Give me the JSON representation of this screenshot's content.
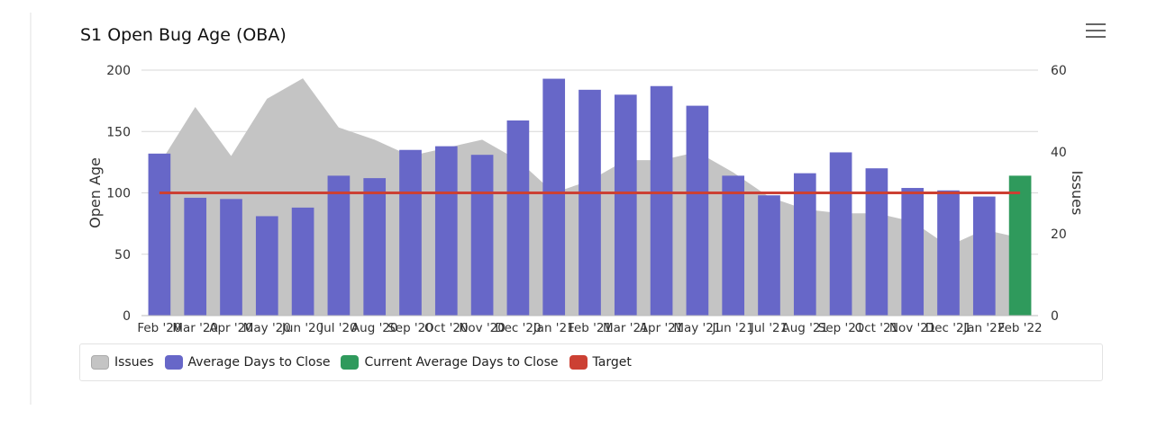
{
  "title": "S1 Open Bug Age (OBA)",
  "menu_icon": "hamburger-icon",
  "colors": {
    "issues": "#c4c4c4",
    "avg_days": "#6767c8",
    "current_avg": "#2f9a5c",
    "target": "#cc4033",
    "grid": "#d7d7d7",
    "axis_text": "#333333"
  },
  "legend": [
    {
      "label": "Issues",
      "color": "#c4c4c4"
    },
    {
      "label": "Average Days to Close",
      "color": "#6767c8"
    },
    {
      "label": "Current Average Days to Close",
      "color": "#2f9a5c"
    },
    {
      "label": "Target",
      "color": "#cc4033"
    }
  ],
  "chart_data": {
    "type": "bar",
    "title": "S1 Open Bug Age (OBA)",
    "categories": [
      "Feb '20",
      "Mar '20",
      "Apr '20",
      "May '20",
      "Jun '20",
      "Jul '20",
      "Aug '20",
      "Sep '20",
      "Oct '20",
      "Nov '20",
      "Dec '20",
      "Jan '21",
      "Feb '21",
      "Mar '21",
      "Apr '21",
      "May '21",
      "Jun '21",
      "Jul '21",
      "Aug '21",
      "Sep '21",
      "Oct '21",
      "Nov '21",
      "Dec '21",
      "Jan '22",
      "Feb '22"
    ],
    "ylabel_left": "Open Age",
    "ylabel_right": "Issues",
    "ylim_left": [
      0,
      200
    ],
    "yticks_left": [
      0,
      50,
      100,
      150,
      200
    ],
    "ylim_right": [
      0,
      60
    ],
    "yticks_right": [
      0,
      20,
      40,
      60
    ],
    "series": [
      {
        "name": "Issues",
        "type": "area",
        "axis": "right",
        "values": [
          37,
          51,
          39,
          53,
          58,
          46,
          43,
          39,
          41,
          43,
          38,
          30,
          33,
          38,
          38,
          40,
          35,
          29,
          26,
          25,
          25,
          23,
          17,
          21,
          19
        ]
      },
      {
        "name": "Average Days to Close",
        "type": "bar",
        "axis": "left",
        "values": [
          132,
          96,
          95,
          81,
          88,
          114,
          112,
          135,
          138,
          131,
          159,
          193,
          184,
          180,
          187,
          171,
          114,
          98,
          116,
          133,
          120,
          104,
          102,
          97,
          null
        ]
      },
      {
        "name": "Current Average Days to Close",
        "type": "bar",
        "axis": "left",
        "values": [
          null,
          null,
          null,
          null,
          null,
          null,
          null,
          null,
          null,
          null,
          null,
          null,
          null,
          null,
          null,
          null,
          null,
          null,
          null,
          null,
          null,
          null,
          null,
          null,
          114
        ]
      },
      {
        "name": "Target",
        "type": "line",
        "axis": "left",
        "values": [
          100,
          100,
          100,
          100,
          100,
          100,
          100,
          100,
          100,
          100,
          100,
          100,
          100,
          100,
          100,
          100,
          100,
          100,
          100,
          100,
          100,
          100,
          100,
          100,
          100
        ]
      }
    ]
  }
}
